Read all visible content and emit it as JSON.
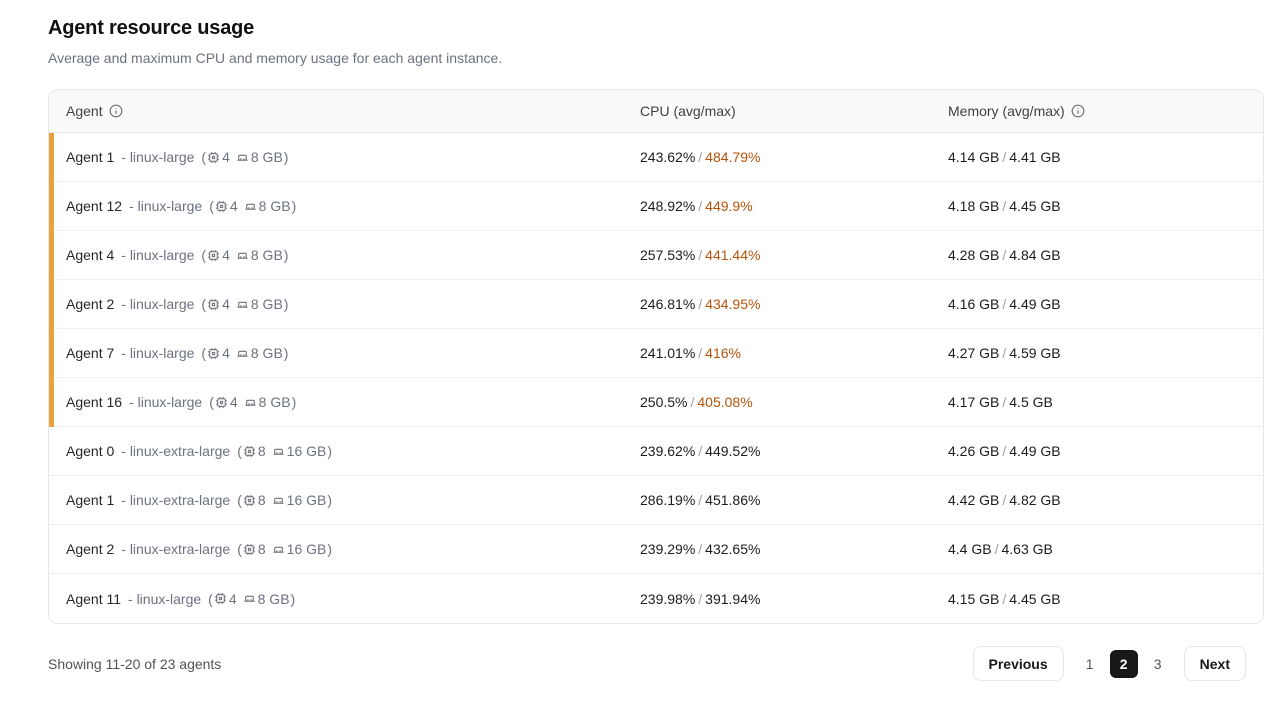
{
  "page": {
    "title": "Agent resource usage",
    "subtitle": "Average and maximum CPU and memory usage for each agent instance."
  },
  "icons": {
    "agent_header": "info-icon",
    "memory_header": "info-icon",
    "spec_cpu": "cpu-icon",
    "spec_ram": "memory-icon"
  },
  "colors": {
    "accent_bar": "#eaa23b",
    "hot_value": "#b45309",
    "active_page_bg": "#18181b"
  },
  "table": {
    "columns": {
      "agent": "Agent",
      "cpu": "CPU (avg/max)",
      "memory": "Memory (avg/max)"
    },
    "rows": [
      {
        "name": "Agent 1",
        "type": "- linux-large",
        "cpus": "4",
        "memory": "8 GB",
        "cpu_avg": "243.62%",
        "cpu_max": "484.79%",
        "cpu_max_hot": true,
        "mem_avg": "4.14 GB",
        "mem_max": "4.41 GB",
        "highlighted": true
      },
      {
        "name": "Agent 12",
        "type": "- linux-large",
        "cpus": "4",
        "memory": "8 GB",
        "cpu_avg": "248.92%",
        "cpu_max": "449.9%",
        "cpu_max_hot": true,
        "mem_avg": "4.18 GB",
        "mem_max": "4.45 GB",
        "highlighted": true
      },
      {
        "name": "Agent 4",
        "type": "- linux-large",
        "cpus": "4",
        "memory": "8 GB",
        "cpu_avg": "257.53%",
        "cpu_max": "441.44%",
        "cpu_max_hot": true,
        "mem_avg": "4.28 GB",
        "mem_max": "4.84 GB",
        "highlighted": true
      },
      {
        "name": "Agent 2",
        "type": "- linux-large",
        "cpus": "4",
        "memory": "8 GB",
        "cpu_avg": "246.81%",
        "cpu_max": "434.95%",
        "cpu_max_hot": true,
        "mem_avg": "4.16 GB",
        "mem_max": "4.49 GB",
        "highlighted": true
      },
      {
        "name": "Agent 7",
        "type": "- linux-large",
        "cpus": "4",
        "memory": "8 GB",
        "cpu_avg": "241.01%",
        "cpu_max": "416%",
        "cpu_max_hot": true,
        "mem_avg": "4.27 GB",
        "mem_max": "4.59 GB",
        "highlighted": true
      },
      {
        "name": "Agent 16",
        "type": "- linux-large",
        "cpus": "4",
        "memory": "8 GB",
        "cpu_avg": "250.5%",
        "cpu_max": "405.08%",
        "cpu_max_hot": true,
        "mem_avg": "4.17 GB",
        "mem_max": "4.5 GB",
        "highlighted": true
      },
      {
        "name": "Agent 0",
        "type": "- linux-extra-large",
        "cpus": "8",
        "memory": "16 GB",
        "cpu_avg": "239.62%",
        "cpu_max": "449.52%",
        "cpu_max_hot": false,
        "mem_avg": "4.26 GB",
        "mem_max": "4.49 GB",
        "highlighted": false
      },
      {
        "name": "Agent 1",
        "type": "- linux-extra-large",
        "cpus": "8",
        "memory": "16 GB",
        "cpu_avg": "286.19%",
        "cpu_max": "451.86%",
        "cpu_max_hot": false,
        "mem_avg": "4.42 GB",
        "mem_max": "4.82 GB",
        "highlighted": false
      },
      {
        "name": "Agent 2",
        "type": "- linux-extra-large",
        "cpus": "8",
        "memory": "16 GB",
        "cpu_avg": "239.29%",
        "cpu_max": "432.65%",
        "cpu_max_hot": false,
        "mem_avg": "4.4 GB",
        "mem_max": "4.63 GB",
        "highlighted": false
      },
      {
        "name": "Agent 11",
        "type": "- linux-large",
        "cpus": "4",
        "memory": "8 GB",
        "cpu_avg": "239.98%",
        "cpu_max": "391.94%",
        "cpu_max_hot": false,
        "mem_avg": "4.15 GB",
        "mem_max": "4.45 GB",
        "highlighted": false
      }
    ]
  },
  "footer": {
    "showing": "Showing 11-20 of 23 agents",
    "pagination": {
      "previous_label": "Previous",
      "pages": [
        "1",
        "2",
        "3"
      ],
      "active_page": "2",
      "next_label": "Next"
    }
  }
}
